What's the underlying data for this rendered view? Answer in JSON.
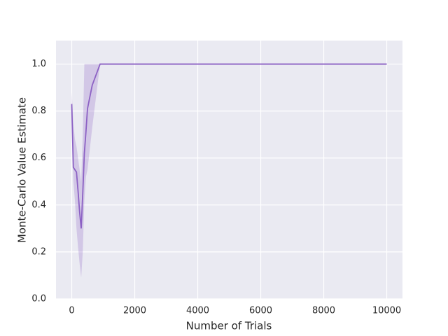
{
  "chart_data": {
    "type": "line",
    "xlabel": "Number of Trials",
    "ylabel": "Monte-Carlo Value Estimate",
    "x": [
      0,
      50,
      100,
      150,
      200,
      250,
      300,
      350,
      400,
      450,
      500,
      650,
      900,
      10000
    ],
    "values": [
      0.83,
      0.56,
      0.55,
      0.54,
      0.46,
      0.37,
      0.3,
      0.45,
      0.62,
      0.71,
      0.81,
      0.91,
      1.0,
      1.0
    ],
    "lower": [
      0.78,
      0.5,
      0.42,
      0.3,
      0.22,
      0.15,
      0.09,
      0.2,
      0.42,
      0.52,
      0.55,
      0.73,
      1.0,
      1.0
    ],
    "upper": [
      0.88,
      0.75,
      0.68,
      0.65,
      0.6,
      0.55,
      0.5,
      0.7,
      1.0,
      1.0,
      1.0,
      1.0,
      1.0,
      1.0
    ],
    "color": "#8c61c4",
    "xlim": [
      -500,
      10500
    ],
    "ylim": [
      0,
      1.1
    ],
    "xticks": [
      0,
      2000,
      4000,
      6000,
      8000,
      10000
    ],
    "yticks": [
      {
        "value": 0,
        "label": "0.0"
      },
      {
        "value": 0.2,
        "label": "0.2"
      },
      {
        "value": 0.4,
        "label": "0.4"
      },
      {
        "value": 0.6,
        "label": "0.6"
      },
      {
        "value": 0.8,
        "label": "0.8"
      },
      {
        "value": 1.0,
        "label": "1.0"
      }
    ],
    "grid": true
  }
}
